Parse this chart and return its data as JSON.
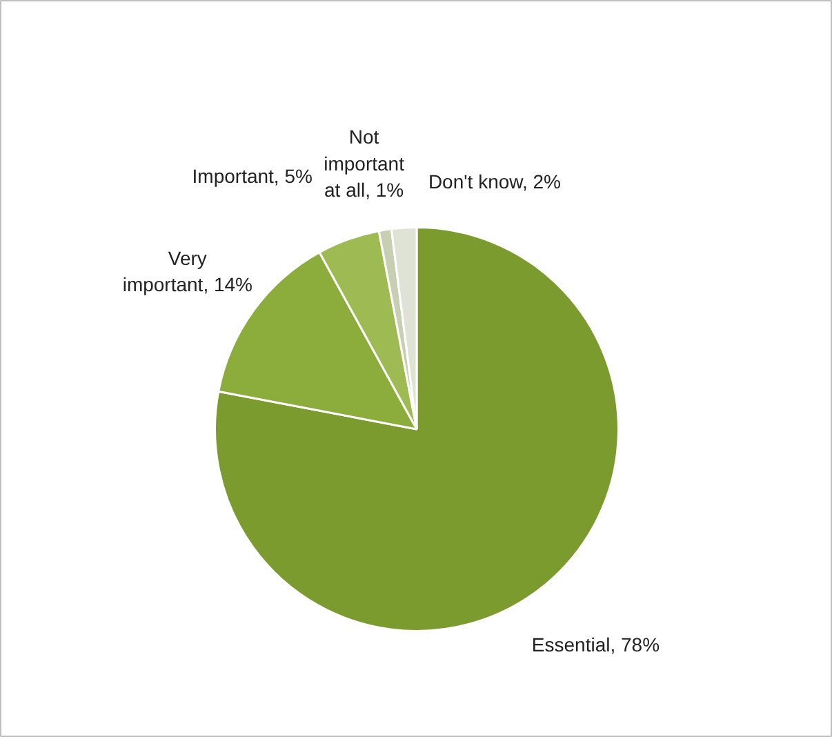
{
  "chart_data": {
    "type": "pie",
    "categories": [
      "Essential",
      "Very important",
      "Important",
      "Not important at all",
      "Don't know"
    ],
    "values": [
      78,
      14,
      5,
      1,
      2
    ],
    "colors": [
      "#7b9b2f",
      "#8cac3c",
      "#9dbb52",
      "#c6cfb2",
      "#dfe3d6"
    ],
    "value_labels": [
      "78%",
      "14%",
      "5%",
      "1%",
      "2%"
    ]
  }
}
